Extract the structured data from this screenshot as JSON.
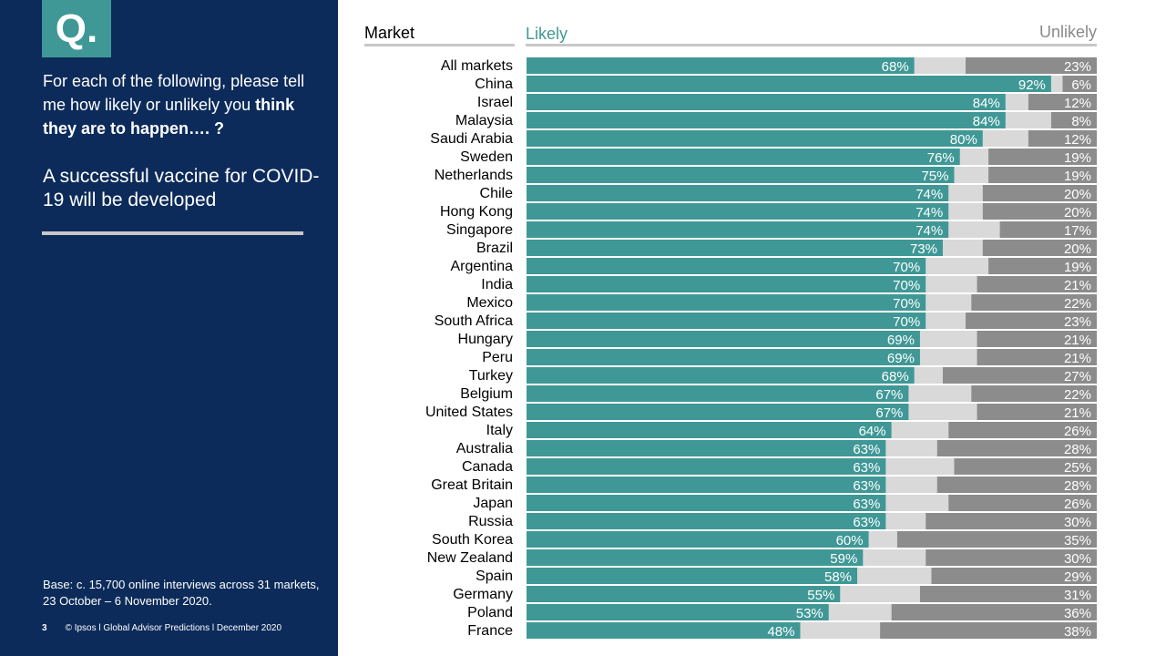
{
  "sidebar": {
    "badge": "Q.",
    "question_plain": "For each of the following, please tell me how likely or unlikely you ",
    "question_bold": "think they are to happen…. ?",
    "subject": "A successful vaccine for COVID-19 will be developed",
    "base_note": "Base: c. 15,700 online interviews across 31 markets,  23 October – 6 November 2020.",
    "page_number": "3",
    "footer": "© Ipsos l Global Advisor Predictions l December 2020"
  },
  "colors": {
    "sidebar_bg": "#0c2b5a",
    "likely": "#3f9896",
    "neutral": "#d9d9d9",
    "unlikely": "#8c8c8c"
  },
  "chart_data": {
    "type": "bar",
    "orientation": "horizontal-stacked-100",
    "column_header": "Market",
    "categories": [
      "All markets",
      "China",
      "Israel",
      "Malaysia",
      "Saudi Arabia",
      "Sweden",
      "Netherlands",
      "Chile",
      "Hong Kong",
      "Singapore",
      "Brazil",
      "Argentina",
      "India",
      "Mexico",
      "South Africa",
      "Hungary",
      "Peru",
      "Turkey",
      "Belgium",
      "United States",
      "Italy",
      "Australia",
      "Canada",
      "Great Britain",
      "Japan",
      "Russia",
      "South Korea",
      "New Zealand",
      "Spain",
      "Germany",
      "Poland",
      "France"
    ],
    "series": [
      {
        "name": "Likely",
        "values": [
          68,
          92,
          84,
          84,
          80,
          76,
          75,
          74,
          74,
          74,
          73,
          70,
          70,
          70,
          70,
          69,
          69,
          68,
          67,
          67,
          64,
          63,
          63,
          63,
          63,
          63,
          60,
          59,
          58,
          55,
          53,
          48
        ]
      },
      {
        "name": "Unlikely",
        "values": [
          23,
          6,
          12,
          8,
          12,
          19,
          19,
          20,
          20,
          17,
          20,
          19,
          21,
          22,
          23,
          21,
          21,
          27,
          22,
          21,
          26,
          28,
          25,
          28,
          26,
          30,
          35,
          30,
          29,
          31,
          36,
          38
        ]
      }
    ],
    "value_labels": {
      "likely": [
        "68%",
        "92%",
        "84%",
        "84%",
        "80%",
        "76%",
        "75%",
        "74%",
        "74%",
        "74%",
        "73%",
        "70%",
        "70%",
        "70%",
        "70%",
        "69%",
        "69%",
        "68%",
        "67%",
        "67%",
        "64%",
        "63%",
        "63%",
        "63%",
        "63%",
        "63%",
        "60%",
        "59%",
        "58%",
        "55%",
        "53%",
        "48%"
      ],
      "unlikely": [
        "23%",
        "6%",
        "12%",
        "8%",
        "12%",
        "19%",
        "19%",
        "20%",
        "20%",
        "17%",
        "20%",
        "19%",
        "21%",
        "22%",
        "23%",
        "21%",
        "21%",
        "27%",
        "22%",
        "21%",
        "26%",
        "28%",
        "25%",
        "28%",
        "26%",
        "30%",
        "35%",
        "30%",
        "29%",
        "31%",
        "36%",
        "38%"
      ]
    },
    "xlim": [
      0,
      100
    ],
    "grid": false,
    "legend": "top"
  }
}
